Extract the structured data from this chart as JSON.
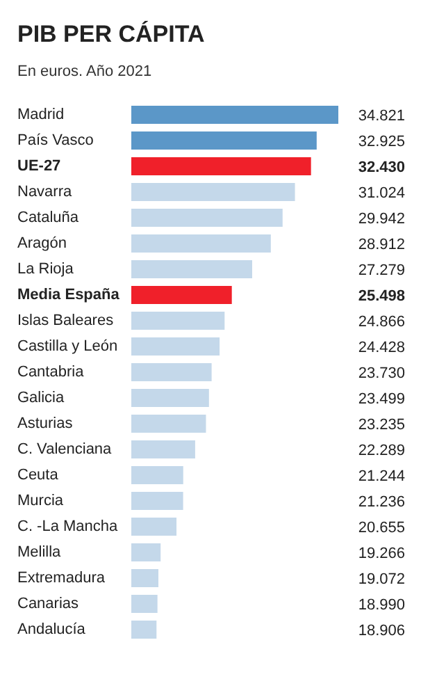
{
  "chart_data": {
    "type": "bar",
    "orientation": "horizontal",
    "title": "PIB PER CÁPITA",
    "subtitle": "En euros. Año 2021",
    "categories": [
      "Madrid",
      "País Vasco",
      "UE-27",
      "Navarra",
      "Cataluña",
      "Aragón",
      "La Rioja",
      "Media España",
      "Islas Baleares",
      "Castilla y León",
      "Cantabria",
      "Galicia",
      "Asturias",
      "C. Valenciana",
      "Ceuta",
      "Murcia",
      "C. -La Mancha",
      "Melilla",
      "Extremadura",
      "Canarias",
      "Andalucía"
    ],
    "values": [
      34821,
      32925,
      32430,
      31024,
      29942,
      28912,
      27279,
      25498,
      24866,
      24428,
      23730,
      23499,
      23235,
      22289,
      21244,
      21236,
      20655,
      19266,
      19072,
      18990,
      18906
    ],
    "value_labels": [
      "34.821",
      "32.925",
      "32.430",
      "31.024",
      "29.942",
      "28.912",
      "27.279",
      "25.498",
      "24.866",
      "24.428",
      "23.730",
      "23.499",
      "23.235",
      "22.289",
      "21.244",
      "21.236",
      "20.655",
      "19.266",
      "19.072",
      "18.990",
      "18.906"
    ],
    "colors": [
      "#5b97c8",
      "#5b97c8",
      "#f0202a",
      "#c4d8ea",
      "#c4d8ea",
      "#c4d8ea",
      "#c4d8ea",
      "#f0202a",
      "#c4d8ea",
      "#c4d8ea",
      "#c4d8ea",
      "#c4d8ea",
      "#c4d8ea",
      "#c4d8ea",
      "#c4d8ea",
      "#c4d8ea",
      "#c4d8ea",
      "#c4d8ea",
      "#c4d8ea",
      "#c4d8ea",
      "#c4d8ea"
    ],
    "xlim": [
      16700,
      34821
    ],
    "tick_labels": false
  }
}
